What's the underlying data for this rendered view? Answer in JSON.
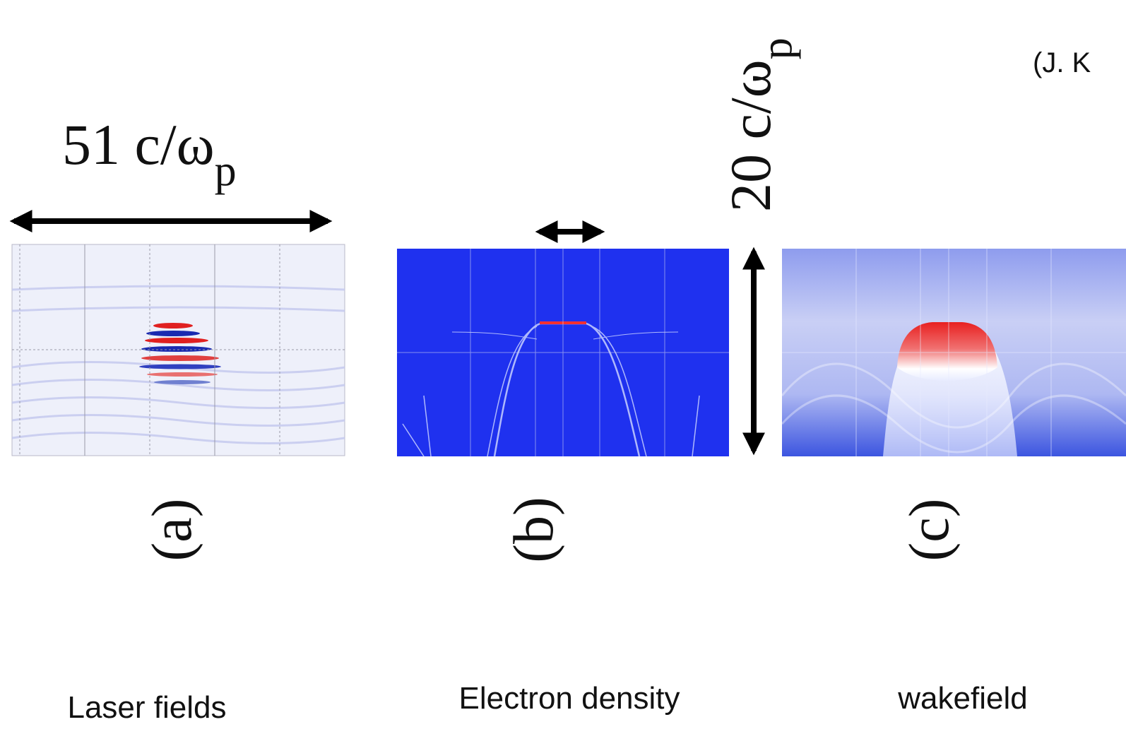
{
  "citation": "(J. K",
  "annotations": {
    "width": {
      "text": "51 c/ω",
      "subscript": "p"
    },
    "height": {
      "text": "20 c/ω",
      "subscript": "p"
    }
  },
  "panels": [
    {
      "tag": "(a)",
      "caption": "Laser fields"
    },
    {
      "tag": "(b)",
      "caption": "Electron density"
    },
    {
      "tag": "(c)",
      "caption": "wakefield"
    }
  ]
}
